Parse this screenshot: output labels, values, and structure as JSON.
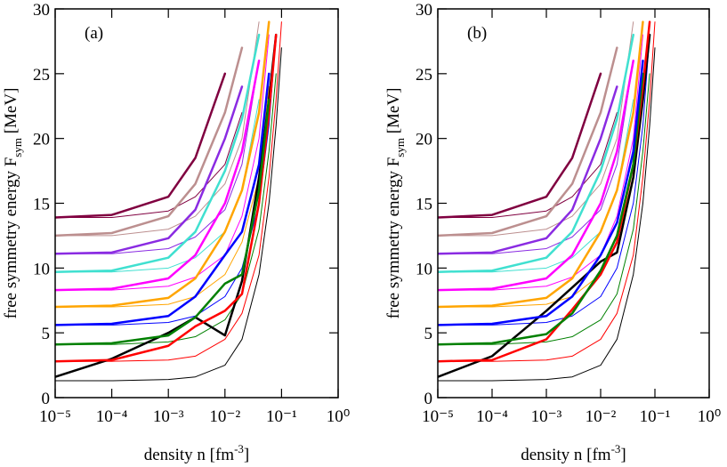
{
  "chart_data": [
    {
      "type": "line",
      "panel_label": "(a)",
      "xlabel": [
        "density   n   [fm",
        "-3",
        "]"
      ],
      "ylabel": [
        "free symmetry energy   F",
        "sym",
        "   [MeV]"
      ],
      "xscale": "log",
      "xlim": [
        1e-05,
        1
      ],
      "ylim": [
        0,
        30
      ],
      "xticks": [
        {
          "value": 1e-05,
          "label": "10⁻⁵"
        },
        {
          "value": 0.0001,
          "label": "10⁻⁴"
        },
        {
          "value": 0.001,
          "label": "10⁻³"
        },
        {
          "value": 0.01,
          "label": "10⁻²"
        },
        {
          "value": 0.1,
          "label": "10⁻¹"
        },
        {
          "value": 1,
          "label": "10⁰"
        }
      ],
      "yticks": [
        0,
        5,
        10,
        15,
        20,
        25,
        30
      ],
      "x": [
        1e-05,
        0.0001,
        0.001,
        0.003,
        0.01,
        0.02,
        0.04,
        0.06,
        0.08,
        0.1
      ],
      "series": [
        {
          "color": "#000000",
          "linewidth": 1,
          "values": [
            1.3,
            1.3,
            1.4,
            1.6,
            2.5,
            4.5,
            9.5,
            15,
            21,
            27
          ]
        },
        {
          "color": "#ff0000",
          "linewidth": 1,
          "values": [
            2.8,
            2.8,
            2.9,
            3.2,
            4.5,
            6.5,
            11,
            17,
            23,
            29
          ]
        },
        {
          "color": "#008000",
          "linewidth": 1,
          "values": [
            4.1,
            4.1,
            4.3,
            4.7,
            6,
            8,
            13,
            19,
            25,
            null
          ]
        },
        {
          "color": "#0000ff",
          "linewidth": 1,
          "values": [
            5.6,
            5.6,
            5.8,
            6.3,
            7.8,
            10,
            15,
            21,
            28,
            null
          ]
        },
        {
          "color": "#ffa500",
          "linewidth": 1,
          "values": [
            7,
            7,
            7.2,
            7.8,
            9.5,
            12,
            17,
            24,
            null,
            null
          ]
        },
        {
          "color": "#ff00ff",
          "linewidth": 1,
          "values": [
            8.3,
            8.3,
            8.6,
            9.3,
            11,
            14,
            20,
            28,
            null,
            null
          ]
        },
        {
          "color": "#40e0d0",
          "linewidth": 1,
          "values": [
            9.7,
            9.7,
            10,
            10.8,
            12.8,
            16,
            23,
            null,
            null,
            null
          ]
        },
        {
          "color": "#8a2be2",
          "linewidth": 1,
          "values": [
            11.1,
            11.1,
            11.5,
            12.4,
            14.5,
            18,
            26,
            null,
            null,
            null
          ]
        },
        {
          "color": "#bc8f8f",
          "linewidth": 1,
          "values": [
            12.5,
            12.5,
            13,
            14,
            16.5,
            20,
            29,
            null,
            null,
            null
          ]
        },
        {
          "color": "#800040",
          "linewidth": 1,
          "values": [
            13.9,
            13.9,
            14.4,
            15.5,
            18,
            22,
            null,
            null,
            null,
            null
          ]
        },
        {
          "color": "#000000",
          "linewidth": 2.5,
          "values": [
            1.6,
            3,
            5,
            6.2,
            4.8,
            9,
            17,
            23,
            28,
            null
          ]
        },
        {
          "color": "#ff0000",
          "linewidth": 2.5,
          "values": [
            2.8,
            2.9,
            4,
            5.5,
            6.7,
            8,
            15,
            22,
            28,
            null
          ]
        },
        {
          "color": "#008000",
          "linewidth": 2.5,
          "values": [
            4.1,
            4.2,
            4.8,
            6.2,
            8.8,
            9.5,
            16,
            23,
            null,
            null
          ]
        },
        {
          "color": "#0000ff",
          "linewidth": 2.5,
          "values": [
            5.6,
            5.7,
            6.3,
            7.8,
            11,
            12.8,
            18,
            25,
            null,
            null
          ]
        },
        {
          "color": "#ffa500",
          "linewidth": 2.5,
          "values": [
            7,
            7.1,
            7.7,
            9.2,
            12.8,
            16,
            22,
            29,
            null,
            null
          ]
        },
        {
          "color": "#ff00ff",
          "linewidth": 2.5,
          "values": [
            8.3,
            8.4,
            9.2,
            11,
            15,
            19,
            26,
            null,
            null,
            null
          ]
        },
        {
          "color": "#40e0d0",
          "linewidth": 2.5,
          "values": [
            9.7,
            9.8,
            10.8,
            12.8,
            17.5,
            21.5,
            28,
            null,
            null,
            null
          ]
        },
        {
          "color": "#8a2be2",
          "linewidth": 2.5,
          "values": [
            11.1,
            11.2,
            12.3,
            14.5,
            20,
            24,
            null,
            null,
            null,
            null
          ]
        },
        {
          "color": "#bc8f8f",
          "linewidth": 2.5,
          "values": [
            12.5,
            12.7,
            14,
            16.5,
            22,
            27,
            null,
            null,
            null,
            null
          ]
        },
        {
          "color": "#800040",
          "linewidth": 2.5,
          "values": [
            13.9,
            14.1,
            15.5,
            18.5,
            25,
            null,
            null,
            null,
            null,
            null
          ]
        }
      ]
    },
    {
      "type": "line",
      "panel_label": "(b)",
      "xlabel": [
        "density   n   [fm",
        "-3",
        "]"
      ],
      "ylabel": [
        "free symmetry energy   F",
        "sym",
        "   [MeV]"
      ],
      "xscale": "log",
      "xlim": [
        1e-05,
        1
      ],
      "ylim": [
        0,
        30
      ],
      "xticks": [
        {
          "value": 1e-05,
          "label": "10⁻⁵"
        },
        {
          "value": 0.0001,
          "label": "10⁻⁴"
        },
        {
          "value": 0.001,
          "label": "10⁻³"
        },
        {
          "value": 0.01,
          "label": "10⁻²"
        },
        {
          "value": 0.1,
          "label": "10⁻¹"
        },
        {
          "value": 1,
          "label": "10⁰"
        }
      ],
      "yticks": [
        0,
        5,
        10,
        15,
        20,
        25,
        30
      ],
      "x": [
        1e-05,
        0.0001,
        0.001,
        0.003,
        0.01,
        0.02,
        0.04,
        0.06,
        0.08,
        0.1
      ],
      "series": [
        {
          "color": "#000000",
          "linewidth": 1,
          "values": [
            1.3,
            1.3,
            1.4,
            1.6,
            2.5,
            4.5,
            9.5,
            15,
            21,
            27
          ]
        },
        {
          "color": "#ff0000",
          "linewidth": 1,
          "values": [
            2.8,
            2.8,
            2.9,
            3.2,
            4.5,
            6.5,
            11,
            17,
            23,
            29
          ]
        },
        {
          "color": "#008000",
          "linewidth": 1,
          "values": [
            4.1,
            4.1,
            4.3,
            4.7,
            6,
            8,
            13,
            19,
            25,
            null
          ]
        },
        {
          "color": "#0000ff",
          "linewidth": 1,
          "values": [
            5.6,
            5.6,
            5.8,
            6.3,
            7.8,
            10,
            15,
            21,
            28,
            null
          ]
        },
        {
          "color": "#ffa500",
          "linewidth": 1,
          "values": [
            7,
            7,
            7.2,
            7.8,
            9.5,
            12,
            17,
            24,
            null,
            null
          ]
        },
        {
          "color": "#ff00ff",
          "linewidth": 1,
          "values": [
            8.3,
            8.3,
            8.6,
            9.3,
            11,
            14,
            20,
            28,
            null,
            null
          ]
        },
        {
          "color": "#40e0d0",
          "linewidth": 1,
          "values": [
            9.7,
            9.7,
            10,
            10.8,
            12.8,
            16,
            23,
            null,
            null,
            null
          ]
        },
        {
          "color": "#8a2be2",
          "linewidth": 1,
          "values": [
            11.1,
            11.1,
            11.5,
            12.4,
            14.5,
            18,
            26,
            null,
            null,
            null
          ]
        },
        {
          "color": "#bc8f8f",
          "linewidth": 1,
          "values": [
            12.5,
            12.5,
            13,
            14,
            16.5,
            20,
            29,
            null,
            null,
            null
          ]
        },
        {
          "color": "#800040",
          "linewidth": 1,
          "values": [
            13.9,
            13.9,
            14.4,
            15.5,
            18,
            22,
            null,
            null,
            null,
            null
          ]
        },
        {
          "color": "#000000",
          "linewidth": 2.5,
          "values": [
            1.6,
            3.2,
            6.7,
            8.5,
            10.5,
            11.2,
            17,
            23,
            28,
            null
          ]
        },
        {
          "color": "#ff0000",
          "linewidth": 2.5,
          "values": [
            2.8,
            2.9,
            4.5,
            6.8,
            9.5,
            12,
            18,
            24,
            29,
            null
          ]
        },
        {
          "color": "#008000",
          "linewidth": 2.5,
          "values": [
            4.1,
            4.2,
            4.9,
            6.5,
            9.8,
            12.5,
            18,
            25,
            null,
            null
          ]
        },
        {
          "color": "#0000ff",
          "linewidth": 2.5,
          "values": [
            5.6,
            5.7,
            6.3,
            7.8,
            11,
            13.5,
            19,
            26,
            null,
            null
          ]
        },
        {
          "color": "#ffa500",
          "linewidth": 2.5,
          "values": [
            7,
            7.1,
            7.7,
            9.2,
            12.8,
            16,
            22,
            29,
            null,
            null
          ]
        },
        {
          "color": "#ff00ff",
          "linewidth": 2.5,
          "values": [
            8.3,
            8.4,
            9.2,
            11,
            15,
            19,
            26,
            null,
            null,
            null
          ]
        },
        {
          "color": "#40e0d0",
          "linewidth": 2.5,
          "values": [
            9.7,
            9.8,
            10.8,
            12.8,
            17.5,
            21.5,
            28,
            null,
            null,
            null
          ]
        },
        {
          "color": "#8a2be2",
          "linewidth": 2.5,
          "values": [
            11.1,
            11.2,
            12.3,
            14.5,
            20,
            24,
            null,
            null,
            null,
            null
          ]
        },
        {
          "color": "#bc8f8f",
          "linewidth": 2.5,
          "values": [
            12.5,
            12.7,
            14,
            16.5,
            22,
            27,
            null,
            null,
            null,
            null
          ]
        },
        {
          "color": "#800040",
          "linewidth": 2.5,
          "values": [
            13.9,
            14.1,
            15.5,
            18.5,
            25,
            null,
            null,
            null,
            null,
            null
          ]
        }
      ]
    }
  ]
}
